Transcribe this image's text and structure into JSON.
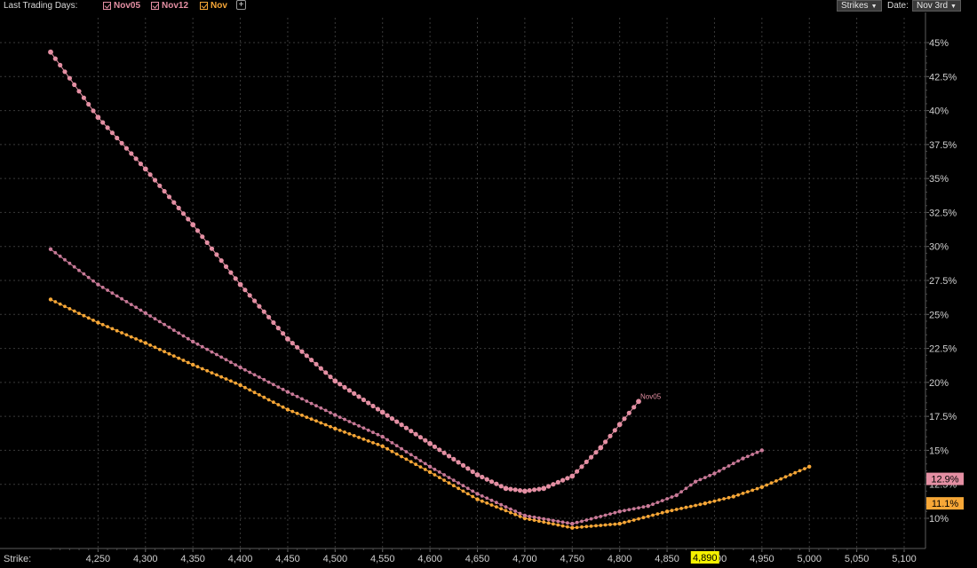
{
  "toolbar": {
    "label": "Last Trading Days:",
    "series_toggles": [
      {
        "label": "Nov05",
        "color": "#e48fa3",
        "checked": true
      },
      {
        "label": "Nov12",
        "color": "#e48fa3",
        "checked": true
      },
      {
        "label": "Nov",
        "color": "#f7a737",
        "checked": true
      }
    ],
    "add_label": "+",
    "strikes_label": "Strikes",
    "date_label": "Date:",
    "date_value": "Nov 3rd"
  },
  "chart_data": {
    "type": "line",
    "xlabel": "Strike:",
    "x_ticks": [
      "4,250",
      "4,300",
      "4,350",
      "4,400",
      "4,450",
      "4,500",
      "4,550",
      "4,600",
      "4,650",
      "4,700",
      "4,750",
      "4,800",
      "4,850",
      "4,900",
      "4,950",
      "5,000",
      "5,050",
      "5,100"
    ],
    "x_tick_values": [
      4250,
      4300,
      4350,
      4400,
      4450,
      4500,
      4550,
      4600,
      4650,
      4700,
      4750,
      4800,
      4850,
      4900,
      4950,
      5000,
      5050,
      5100
    ],
    "y_ticks": [
      "10%",
      "12.5%",
      "15%",
      "17.5%",
      "20%",
      "22.5%",
      "25%",
      "27.5%",
      "30%",
      "32.5%",
      "35%",
      "37.5%",
      "40%",
      "42.5%",
      "45%"
    ],
    "y_tick_values": [
      10,
      12.5,
      15,
      17.5,
      20,
      22.5,
      25,
      27.5,
      30,
      32.5,
      35,
      37.5,
      40,
      42.5,
      45
    ],
    "xlim": [
      4200,
      5110
    ],
    "ylim": [
      8.5,
      46.5
    ],
    "grid": true,
    "crosshair_x_label": "4,890",
    "series": [
      {
        "name": "Nov05",
        "color": "#e48fa3",
        "marker": "large",
        "last_value_label": "12.9%",
        "end_label": "Nov05",
        "points": [
          [
            4200,
            44.3
          ],
          [
            4250,
            39.5
          ],
          [
            4300,
            35.7
          ],
          [
            4350,
            31.6
          ],
          [
            4400,
            27.2
          ],
          [
            4450,
            23.2
          ],
          [
            4500,
            20.1
          ],
          [
            4550,
            17.8
          ],
          [
            4600,
            15.5
          ],
          [
            4650,
            13.2
          ],
          [
            4680,
            12.2
          ],
          [
            4700,
            12.0
          ],
          [
            4720,
            12.2
          ],
          [
            4750,
            13.1
          ],
          [
            4780,
            15.2
          ],
          [
            4800,
            16.9
          ],
          [
            4820,
            18.6
          ]
        ]
      },
      {
        "name": "Nov12",
        "color": "#c97a98",
        "marker": "small",
        "points": [
          [
            4200,
            29.8
          ],
          [
            4250,
            27.2
          ],
          [
            4300,
            25.1
          ],
          [
            4350,
            23.0
          ],
          [
            4400,
            21.1
          ],
          [
            4450,
            19.3
          ],
          [
            4500,
            17.6
          ],
          [
            4550,
            16.0
          ],
          [
            4600,
            13.8
          ],
          [
            4650,
            11.8
          ],
          [
            4700,
            10.2
          ],
          [
            4750,
            9.6
          ],
          [
            4800,
            10.5
          ],
          [
            4830,
            10.9
          ],
          [
            4860,
            11.7
          ],
          [
            4880,
            12.7
          ],
          [
            4900,
            13.3
          ],
          [
            4930,
            14.4
          ],
          [
            4950,
            15.0
          ]
        ]
      },
      {
        "name": "Nov",
        "color": "#f7a737",
        "marker": "small",
        "last_value_label": "11.1%",
        "points": [
          [
            4200,
            26.1
          ],
          [
            4250,
            24.4
          ],
          [
            4300,
            22.9
          ],
          [
            4350,
            21.3
          ],
          [
            4400,
            19.8
          ],
          [
            4450,
            18.0
          ],
          [
            4500,
            16.6
          ],
          [
            4550,
            15.3
          ],
          [
            4600,
            13.4
          ],
          [
            4650,
            11.4
          ],
          [
            4700,
            10.0
          ],
          [
            4750,
            9.3
          ],
          [
            4800,
            9.6
          ],
          [
            4850,
            10.5
          ],
          [
            4890,
            11.1
          ],
          [
            4920,
            11.6
          ],
          [
            4950,
            12.3
          ],
          [
            5000,
            13.8
          ]
        ]
      }
    ]
  }
}
